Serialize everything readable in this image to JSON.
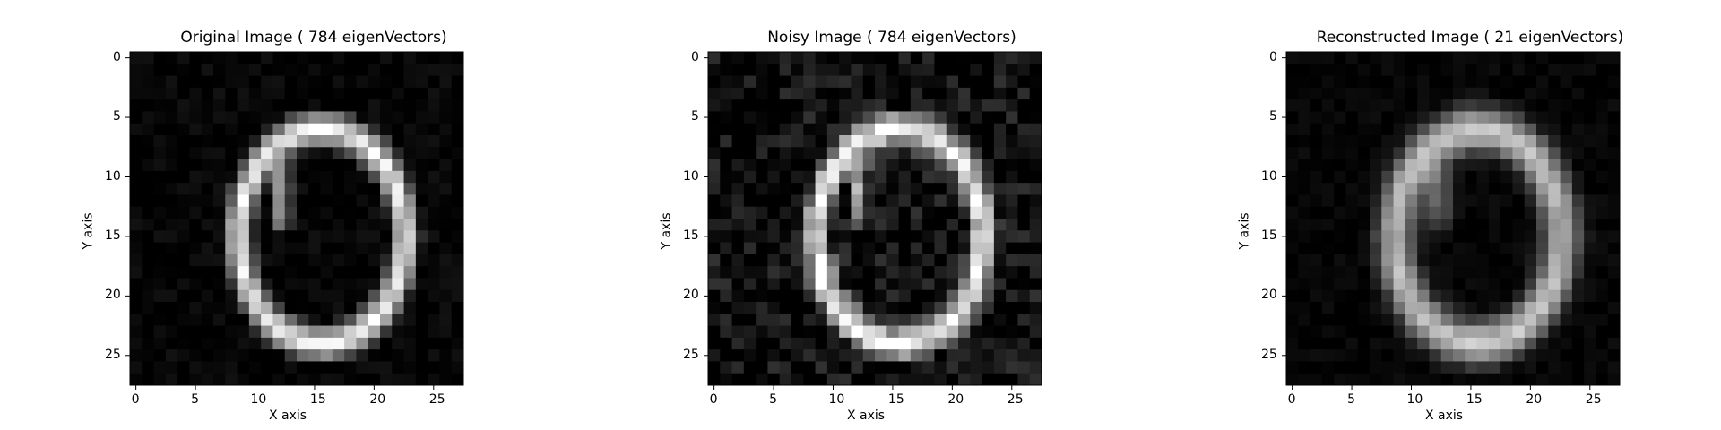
{
  "chart_data": [
    {
      "type": "heatmap",
      "title": "Original Image ( 784 eigenVectors)",
      "xlabel": "X axis",
      "ylabel": "Y axis",
      "xlim": [
        -0.5,
        27.5
      ],
      "ylim": [
        27.5,
        -0.5
      ],
      "xticks": [
        0,
        5,
        10,
        15,
        20,
        25
      ],
      "yticks": [
        0,
        5,
        10,
        15,
        20,
        25
      ],
      "colormap": "gray",
      "image_size": [
        28,
        28
      ],
      "noise_level": 0.05,
      "ring_width": 1.7,
      "blur": 0.0
    },
    {
      "type": "heatmap",
      "title": "Noisy Image ( 784 eigenVectors)",
      "xlabel": "X axis",
      "ylabel": "Y axis",
      "xlim": [
        -0.5,
        27.5
      ],
      "ylim": [
        27.5,
        -0.5
      ],
      "xticks": [
        0,
        5,
        10,
        15,
        20,
        25
      ],
      "yticks": [
        0,
        5,
        10,
        15,
        20,
        25
      ],
      "colormap": "gray",
      "image_size": [
        28,
        28
      ],
      "noise_level": 0.14,
      "ring_width": 1.7,
      "blur": 0.0
    },
    {
      "type": "heatmap",
      "title": "Reconstructed Image ( 21 eigenVectors)",
      "xlabel": "X axis",
      "ylabel": "Y axis",
      "xlim": [
        -0.5,
        27.5
      ],
      "ylim": [
        27.5,
        -0.5
      ],
      "xticks": [
        0,
        5,
        10,
        15,
        20,
        25
      ],
      "yticks": [
        0,
        5,
        10,
        15,
        20,
        25
      ],
      "colormap": "gray",
      "image_size": [
        28,
        28
      ],
      "noise_level": 0.04,
      "ring_width": 2.0,
      "blur": 0.6
    }
  ]
}
